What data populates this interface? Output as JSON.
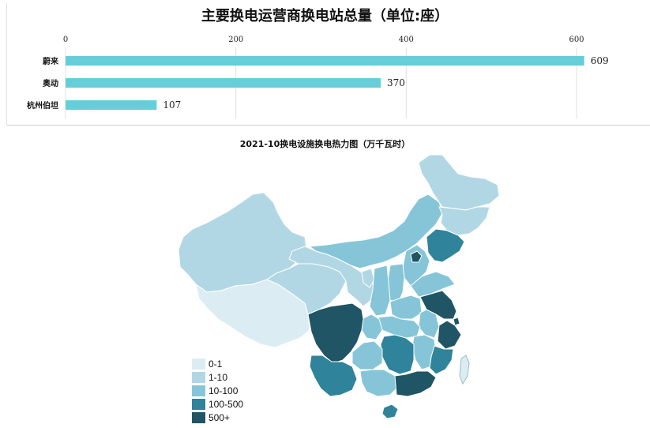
{
  "chart_data": [
    {
      "type": "bar",
      "orientation": "horizontal",
      "title": "主要换电运营商换电站总量（单位:座）",
      "categories": [
        "蔚来",
        "奥动",
        "杭州伯坦"
      ],
      "values": [
        609,
        370,
        107
      ],
      "xlim": [
        0,
        680
      ],
      "xticks": [
        0,
        200,
        400,
        600
      ],
      "grid": true,
      "bar_color": "#66cdd9"
    },
    {
      "type": "heatmap",
      "title": "2021-10换电设施换电热力图（万千瓦时）",
      "legend": {
        "position": "bottom-left",
        "items": [
          {
            "label": "0-1",
            "color": "#dbedf3"
          },
          {
            "label": "1-10",
            "color": "#b2d7e4"
          },
          {
            "label": "10-100",
            "color": "#86c5d8"
          },
          {
            "label": "100-500",
            "color": "#2f839a"
          },
          {
            "label": "500+",
            "color": "#1f5564"
          }
        ]
      }
    }
  ]
}
